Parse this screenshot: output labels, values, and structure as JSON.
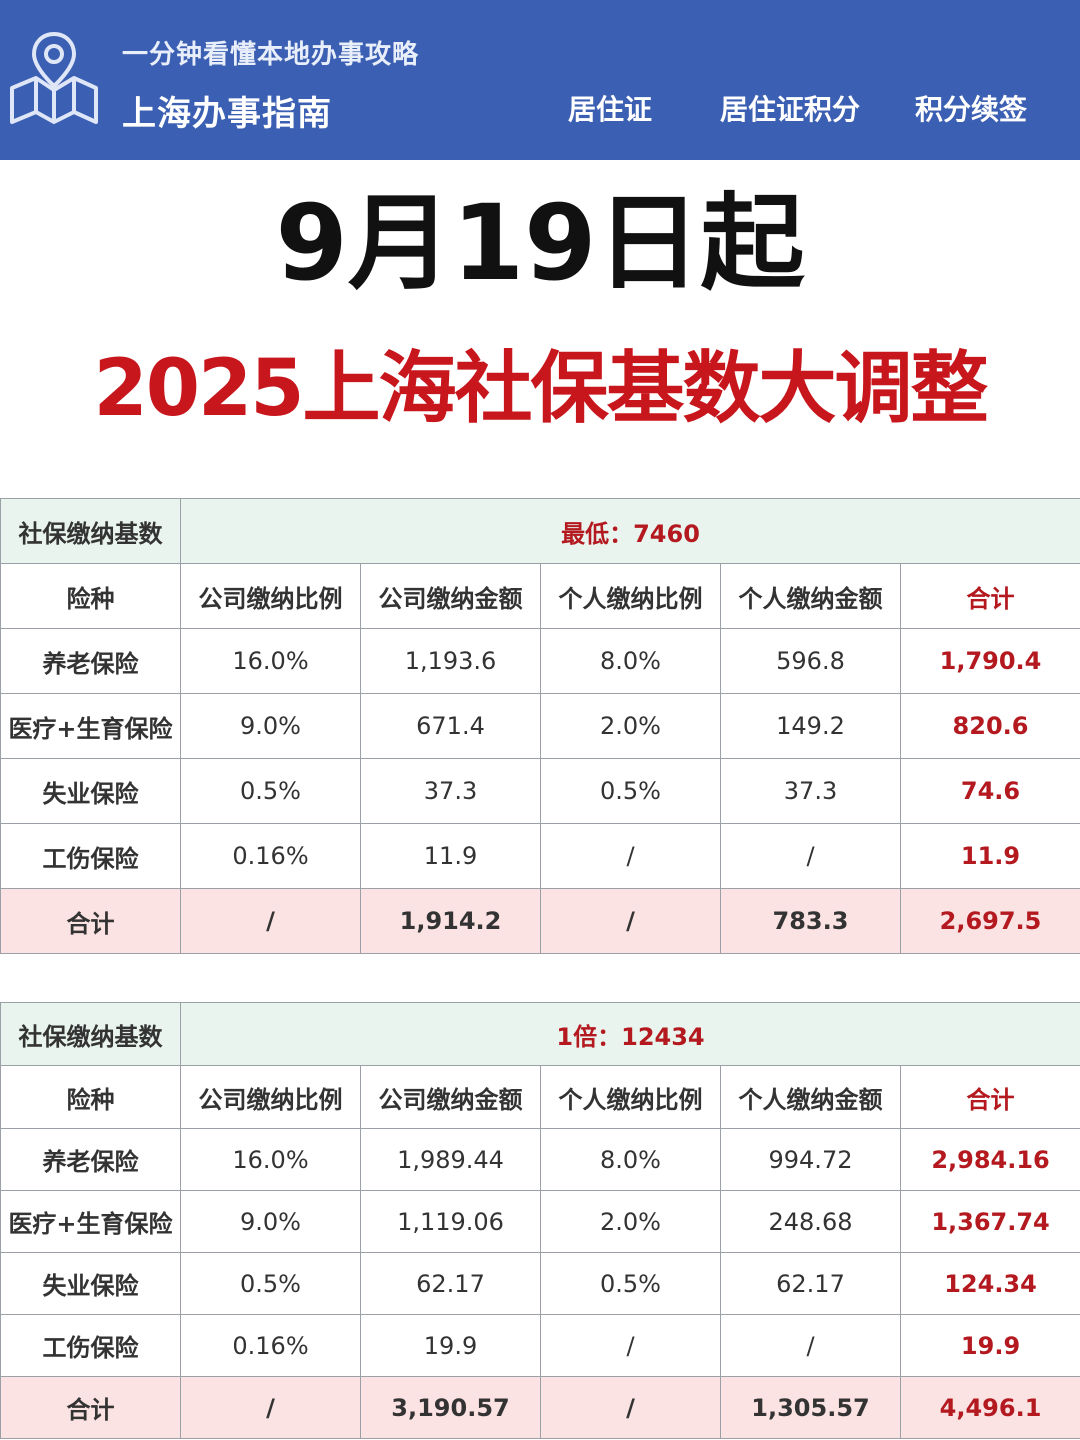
{
  "header": {
    "tagline": "一分钟看懂本地办事攻略",
    "brand": "上海办事指南",
    "nav": [
      "居住证",
      "居住证积分",
      "积分续签"
    ],
    "colors": {
      "background": "#3b5fb2",
      "text": "#ffffff"
    },
    "icon": "map-pin-icon"
  },
  "titles": {
    "line1": "9月19日起",
    "line2": "2025上海社保基数大调整",
    "line2_color": "#c8161d"
  },
  "tables": [
    {
      "base_label": "社保缴纳基数",
      "base_value": "最低：7460",
      "columns": [
        "险种",
        "公司缴纳比例",
        "公司缴纳金额",
        "个人缴纳比例",
        "个人缴纳金额",
        "合计"
      ],
      "rows": [
        [
          "养老保险",
          "16.0%",
          "1,193.6",
          "8.0%",
          "596.8",
          "1,790.4"
        ],
        [
          "医疗+生育保险",
          "9.0%",
          "671.4",
          "2.0%",
          "149.2",
          "820.6"
        ],
        [
          "失业保险",
          "0.5%",
          "37.3",
          "0.5%",
          "37.3",
          "74.6"
        ],
        [
          "工伤保险",
          "0.16%",
          "11.9",
          "/",
          "/",
          "11.9"
        ]
      ],
      "total": [
        "合计",
        "/",
        "1,914.2",
        "/",
        "783.3",
        "2,697.5"
      ]
    },
    {
      "base_label": "社保缴纳基数",
      "base_value": "1倍：12434",
      "columns": [
        "险种",
        "公司缴纳比例",
        "公司缴纳金额",
        "个人缴纳比例",
        "个人缴纳金额",
        "合计"
      ],
      "rows": [
        [
          "养老保险",
          "16.0%",
          "1,989.44",
          "8.0%",
          "994.72",
          "2,984.16"
        ],
        [
          "医疗+生育保险",
          "9.0%",
          "1,119.06",
          "2.0%",
          "248.68",
          "1,367.74"
        ],
        [
          "失业保险",
          "0.5%",
          "62.17",
          "0.5%",
          "62.17",
          "124.34"
        ],
        [
          "工伤保险",
          "0.16%",
          "19.9",
          "/",
          "/",
          "19.9"
        ]
      ],
      "total": [
        "合计",
        "/",
        "3,190.57",
        "/",
        "1,305.57",
        "4,496.1"
      ]
    }
  ]
}
